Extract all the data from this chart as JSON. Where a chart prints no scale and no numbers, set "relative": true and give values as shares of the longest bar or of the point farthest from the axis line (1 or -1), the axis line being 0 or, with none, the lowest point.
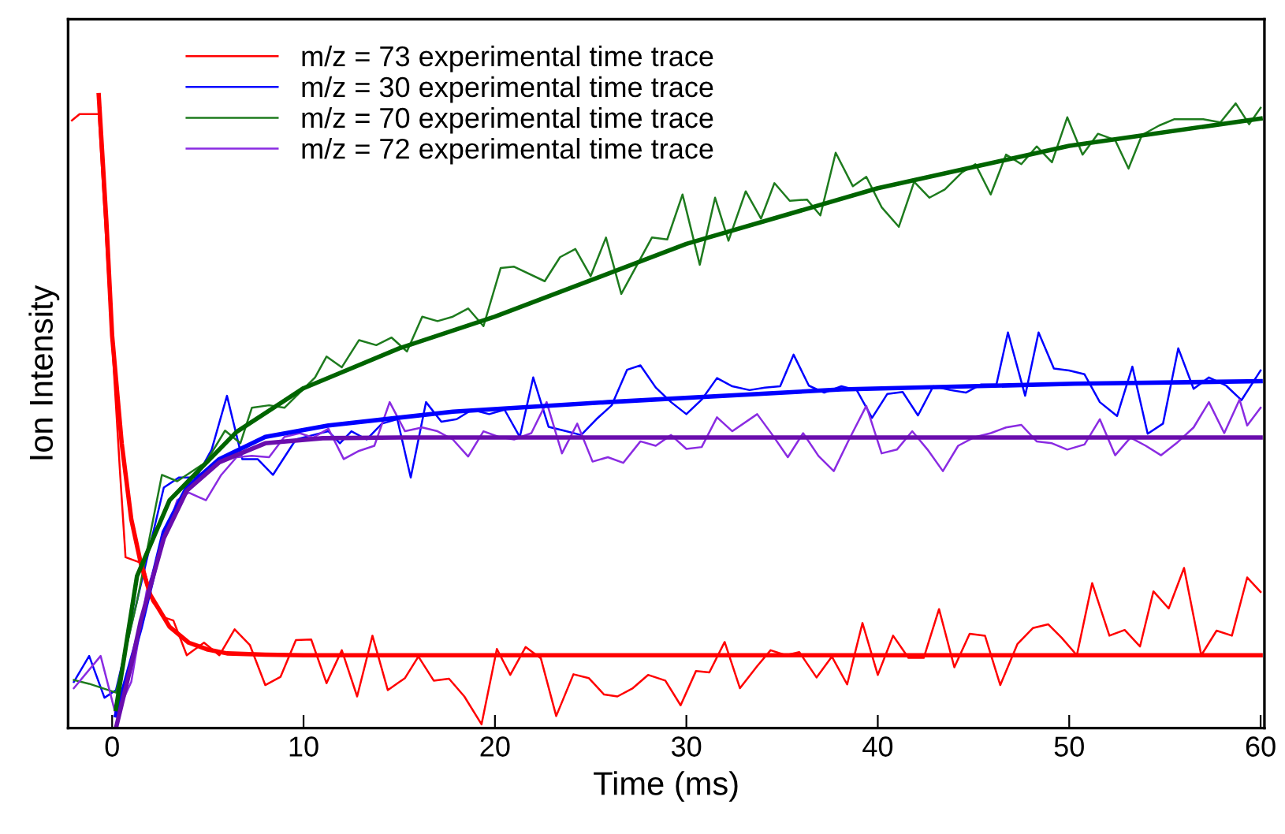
{
  "chart_data": {
    "type": "line",
    "relative": true,
    "xlabel": "Time (ms)",
    "ylabel": "Ion Intensity",
    "xlim": [
      -2.3,
      60.2
    ],
    "xticks": [
      0,
      10,
      20,
      30,
      40,
      50,
      60
    ],
    "grid": false,
    "legend": "top left",
    "marker": "none",
    "line_style": "solid",
    "series": [
      {
        "name": "m/z = 73 experimental time trace",
        "color": "#ff0000",
        "x": [
          -2.1,
          -1.7,
          -0.7,
          0,
          0.4,
          0.7,
          1.6,
          2.1,
          2.7,
          3.2,
          3.9,
          4.8,
          5.6,
          6.4,
          7.2,
          8.0,
          8.8,
          9.6,
          10.4,
          11.2,
          12.0,
          12.8,
          13.6,
          14.4,
          15.3,
          16.0,
          16.8,
          17.6,
          18.4,
          19.3,
          20.1,
          20.8,
          21.6,
          22.4,
          23.2,
          24.1,
          24.9,
          25.7,
          26.4,
          27.2,
          28.0,
          28.9,
          29.7,
          30.5,
          31.2,
          32.0,
          32.8,
          33.7,
          34.4,
          35.2,
          35.9,
          36.8,
          37.6,
          38.4,
          39.2,
          40.0,
          40.8,
          41.6,
          42.4,
          43.2,
          44.0,
          44.8,
          45.6,
          46.4,
          47.3,
          48.1,
          48.9,
          49.6,
          50.4,
          51.2,
          52.1,
          52.9,
          53.7,
          54.4,
          55.2,
          56.0,
          56.9,
          57.7,
          58.5,
          59.3,
          60.0
        ],
        "values": [
          0.96,
          0.97,
          0.97,
          0.61,
          0.41,
          0.27,
          0.26,
          0.2,
          0.175,
          0.17,
          0.115,
          0.135,
          0.115,
          0.156,
          0.131,
          0.068,
          0.081,
          0.139,
          0.14,
          0.071,
          0.123,
          0.05,
          0.146,
          0.06,
          0.079,
          0.113,
          0.075,
          0.078,
          0.05,
          0.006,
          0.125,
          0.084,
          0.128,
          0.11,
          0.019,
          0.085,
          0.079,
          0.053,
          0.05,
          0.063,
          0.084,
          0.075,
          0.036,
          0.09,
          0.088,
          0.136,
          0.063,
          0.098,
          0.123,
          0.115,
          0.12,
          0.08,
          0.113,
          0.069,
          0.166,
          0.084,
          0.146,
          0.111,
          0.111,
          0.188,
          0.096,
          0.149,
          0.146,
          0.068,
          0.133,
          0.158,
          0.164,
          0.143,
          0.115,
          0.229,
          0.146,
          0.155,
          0.129,
          0.216,
          0.189,
          0.253,
          0.115,
          0.154,
          0.146,
          0.238,
          0.215
        ]
      },
      {
        "name": "m/z = 30 experimental time trace",
        "color": "#0000ff",
        "x": [
          -2.0,
          -1.2,
          -0.4,
          0.2,
          2.7,
          3.5,
          4.4,
          5.2,
          6.0,
          6.8,
          7.6,
          8.4,
          9.6,
          10.5,
          11.3,
          11.9,
          12.5,
          13.3,
          14.1,
          14.9,
          15.6,
          16.4,
          17.2,
          18.0,
          18.8,
          19.7,
          20.5,
          21.3,
          22.0,
          22.8,
          23.6,
          24.5,
          25.3,
          26.1,
          26.9,
          27.6,
          28.4,
          29.2,
          30.0,
          30.8,
          31.6,
          32.4,
          33.3,
          34.1,
          34.9,
          35.6,
          36.4,
          37.2,
          38.1,
          38.9,
          39.7,
          40.5,
          41.3,
          42.1,
          42.9,
          43.8,
          44.6,
          45.4,
          46.2,
          46.8,
          47.7,
          48.4,
          49.2,
          50.0,
          50.8,
          51.6,
          52.5,
          53.3,
          54.1,
          54.9,
          55.7,
          56.5,
          57.3,
          58.2,
          59.0,
          60.0
        ],
        "values": [
          0.073,
          0.114,
          0.048,
          0.06,
          0.38,
          0.396,
          0.396,
          0.44,
          0.525,
          0.425,
          0.425,
          0.4,
          0.456,
          0.463,
          0.469,
          0.45,
          0.469,
          0.456,
          0.481,
          0.488,
          0.396,
          0.515,
          0.484,
          0.488,
          0.503,
          0.496,
          0.503,
          0.46,
          0.554,
          0.476,
          0.47,
          0.463,
          0.488,
          0.51,
          0.566,
          0.573,
          0.538,
          0.515,
          0.496,
          0.519,
          0.553,
          0.54,
          0.534,
          0.538,
          0.54,
          0.59,
          0.541,
          0.53,
          0.54,
          0.534,
          0.49,
          0.528,
          0.531,
          0.494,
          0.54,
          0.534,
          0.53,
          0.543,
          0.543,
          0.625,
          0.525,
          0.625,
          0.568,
          0.565,
          0.559,
          0.515,
          0.493,
          0.571,
          0.465,
          0.481,
          0.6,
          0.536,
          0.554,
          0.541,
          0.518,
          0.565
        ]
      },
      {
        "name": "m/z = 70 experimental time trace",
        "color": "#1e7b1e",
        "x": [
          -2.0,
          -1.2,
          0.2,
          1.3,
          2.6,
          3.4,
          4.9,
          5.9,
          6.7,
          7.3,
          8.2,
          9.0,
          10.6,
          11.2,
          12.0,
          12.9,
          13.8,
          14.6,
          15.4,
          16.2,
          17.0,
          17.8,
          18.6,
          19.4,
          20.3,
          21.0,
          22.6,
          23.4,
          24.2,
          25.0,
          25.8,
          26.6,
          28.2,
          29.0,
          29.8,
          30.7,
          31.5,
          32.2,
          33.1,
          33.9,
          34.6,
          35.4,
          36.3,
          37.0,
          37.8,
          38.7,
          39.4,
          40.2,
          41.1,
          41.9,
          42.7,
          43.5,
          44.4,
          45.1,
          45.9,
          46.7,
          47.5,
          48.3,
          49.1,
          49.9,
          50.7,
          51.5,
          52.4,
          53.1,
          53.8,
          54.7,
          55.5,
          57.0,
          57.9,
          58.7,
          59.4,
          60.0
        ],
        "values": [
          0.076,
          0.07,
          0.056,
          0.2,
          0.4,
          0.39,
          0.42,
          0.47,
          0.45,
          0.506,
          0.51,
          0.506,
          0.554,
          0.587,
          0.57,
          0.613,
          0.605,
          0.617,
          0.595,
          0.65,
          0.643,
          0.65,
          0.663,
          0.635,
          0.727,
          0.729,
          0.706,
          0.744,
          0.757,
          0.714,
          0.775,
          0.686,
          0.775,
          0.772,
          0.843,
          0.732,
          0.838,
          0.77,
          0.848,
          0.805,
          0.861,
          0.833,
          0.835,
          0.81,
          0.909,
          0.856,
          0.871,
          0.823,
          0.792,
          0.863,
          0.838,
          0.851,
          0.878,
          0.891,
          0.843,
          0.906,
          0.891,
          0.919,
          0.894,
          0.965,
          0.906,
          0.939,
          0.929,
          0.884,
          0.937,
          0.952,
          0.962,
          0.962,
          0.957,
          0.987,
          0.954,
          0.98
        ]
      },
      {
        "name": "m/z = 72 experimental time trace",
        "color": "#8a2be2",
        "x": [
          -2.0,
          -0.6,
          0.2,
          1.0,
          1.8,
          3.4,
          4.0,
          4.9,
          5.7,
          6.5,
          7.3,
          8.2,
          9.0,
          9.8,
          10.5,
          11.3,
          12.1,
          12.9,
          13.7,
          14.5,
          15.3,
          16.2,
          17.0,
          17.8,
          18.6,
          19.4,
          20.2,
          21.0,
          21.9,
          22.7,
          23.5,
          24.3,
          25.1,
          25.9,
          26.7,
          27.6,
          28.4,
          29.2,
          30.0,
          30.8,
          31.6,
          32.4,
          33.7,
          34.5,
          35.3,
          36.1,
          36.9,
          37.7,
          38.5,
          39.4,
          40.2,
          41.0,
          41.8,
          42.6,
          43.4,
          44.2,
          45.0,
          45.9,
          46.7,
          47.5,
          48.3,
          49.1,
          49.9,
          50.8,
          51.6,
          52.4,
          53.2,
          54.0,
          54.8,
          55.6,
          56.5,
          57.3,
          58.1,
          58.9,
          59.3,
          60.0
        ],
        "values": [
          0.063,
          0.114,
          0.02,
          0.073,
          0.216,
          0.36,
          0.372,
          0.36,
          0.4,
          0.428,
          0.43,
          0.428,
          0.46,
          0.466,
          0.459,
          0.473,
          0.425,
          0.438,
          0.446,
          0.515,
          0.469,
          0.475,
          0.469,
          0.456,
          0.429,
          0.469,
          0.46,
          0.456,
          0.466,
          0.515,
          0.434,
          0.481,
          0.421,
          0.428,
          0.419,
          0.453,
          0.446,
          0.463,
          0.441,
          0.444,
          0.491,
          0.469,
          0.496,
          0.463,
          0.428,
          0.466,
          0.43,
          0.406,
          0.456,
          0.509,
          0.434,
          0.44,
          0.469,
          0.44,
          0.406,
          0.446,
          0.459,
          0.466,
          0.475,
          0.479,
          0.453,
          0.45,
          0.44,
          0.448,
          0.488,
          0.431,
          0.459,
          0.446,
          0.431,
          0.45,
          0.475,
          0.515,
          0.466,
          0.519,
          0.478,
          0.506
        ]
      },
      {
        "color": "#ff0000",
        "x": [
          -0.7,
          -0.3,
          0,
          0.5,
          1,
          1.5,
          2,
          3,
          4,
          5,
          6,
          8,
          10,
          60
        ],
        "values": [
          1.0,
          0.8,
          0.62,
          0.45,
          0.33,
          0.26,
          0.21,
          0.16,
          0.135,
          0.124,
          0.118,
          0.116,
          0.115,
          0.115
        ]
      },
      {
        "color": "#0000ff",
        "x": [
          0.2,
          1.5,
          2.7,
          3.9,
          5.6,
          8.0,
          11.3,
          17.8,
          25.9,
          38.1,
          50.3,
          60
        ],
        "values": [
          0.02,
          0.16,
          0.31,
          0.38,
          0.425,
          0.46,
          0.478,
          0.5,
          0.515,
          0.535,
          0.544,
          0.548
        ]
      },
      {
        "color": "#006400",
        "x": [
          0.2,
          1.3,
          3.0,
          6.5,
          10,
          15,
          20,
          30,
          40,
          50,
          60
        ],
        "values": [
          0.03,
          0.24,
          0.36,
          0.468,
          0.537,
          0.6,
          0.65,
          0.765,
          0.853,
          0.92,
          0.963
        ]
      },
      {
        "color": "#6a0dad",
        "x": [
          0.2,
          1,
          1.5,
          2.7,
          3.9,
          5.6,
          8.0,
          11,
          15,
          60
        ],
        "values": [
          0.0,
          0.1,
          0.17,
          0.3,
          0.375,
          0.42,
          0.45,
          0.458,
          0.459,
          0.459
        ]
      }
    ]
  }
}
